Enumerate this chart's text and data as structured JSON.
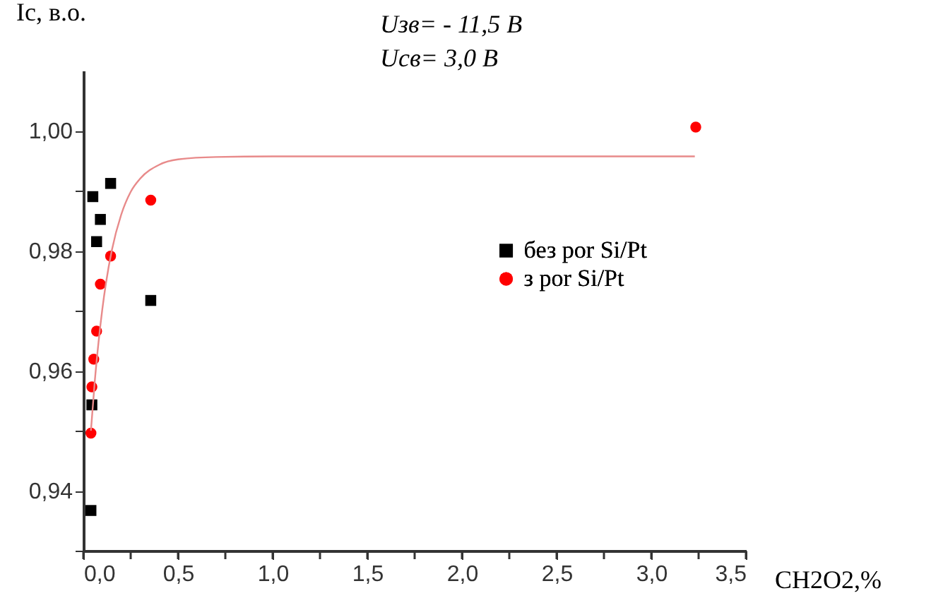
{
  "chart_data": {
    "type": "scatter",
    "xlabel": "CH2O2,%",
    "ylabel": "Iс, в.о.",
    "annotations": [
      "Uзв= - 11,5 В",
      "Uсв= 3,0 В"
    ],
    "xlim": [
      0,
      3.5
    ],
    "ylim": [
      0.93,
      1.01
    ],
    "xticks": [
      {
        "value": 0,
        "label": "0,0"
      },
      {
        "value": 0.25,
        "label": null
      },
      {
        "value": 0.5,
        "label": "0,5"
      },
      {
        "value": 0.75,
        "label": null
      },
      {
        "value": 1.0,
        "label": "1,0"
      },
      {
        "value": 1.25,
        "label": null
      },
      {
        "value": 1.5,
        "label": "1,5"
      },
      {
        "value": 1.75,
        "label": null
      },
      {
        "value": 2.0,
        "label": "2,0"
      },
      {
        "value": 2.25,
        "label": null
      },
      {
        "value": 2.5,
        "label": "2,5"
      },
      {
        "value": 2.75,
        "label": null
      },
      {
        "value": 3.0,
        "label": "3,0"
      },
      {
        "value": 3.25,
        "label": null
      },
      {
        "value": 3.5,
        "label": "3,5"
      }
    ],
    "yticks": [
      {
        "value": 0.93,
        "label": null
      },
      {
        "value": 0.94,
        "label": "0,94"
      },
      {
        "value": 0.95,
        "label": null
      },
      {
        "value": 0.96,
        "label": "0,96"
      },
      {
        "value": 0.97,
        "label": null
      },
      {
        "value": 0.98,
        "label": "0,98"
      },
      {
        "value": 0.99,
        "label": null
      },
      {
        "value": 1.0,
        "label": "1,00"
      }
    ],
    "grid": false,
    "legend": "right",
    "series": [
      {
        "name": "без por Si/Pt",
        "color": "#000000",
        "marker": "square",
        "x": [
          0.05,
          0.144,
          0.09,
          0.07,
          0.356,
          0.045,
          0.04
        ],
        "values": [
          0.989,
          0.9912,
          0.9852,
          0.9815,
          0.9717,
          0.9543,
          0.9367
        ]
      },
      {
        "name": "з por Si/Pt",
        "color": "#ff0000",
        "marker": "circle",
        "x": [
          0.356,
          0.144,
          0.09,
          0.07,
          0.055,
          0.045,
          0.04,
          3.235
        ],
        "values": [
          0.9884,
          0.9791,
          0.9744,
          0.9666,
          0.9619,
          0.9573,
          0.9496,
          1.0006
        ]
      },
      {
        "type": "line",
        "color": "#e88a8a",
        "marker": "none",
        "line_style": "solid",
        "x": [
          0.04,
          0.06,
          0.08,
          0.1,
          0.12,
          0.15,
          0.2,
          0.25,
          0.3,
          0.4,
          0.5,
          0.7,
          1.0,
          3.23
        ],
        "values": [
          0.95,
          0.9581,
          0.9647,
          0.9702,
          0.9747,
          0.98,
          0.986,
          0.9898,
          0.992,
          0.9943,
          0.9952,
          0.9956,
          0.9957,
          0.9957
        ]
      }
    ]
  }
}
